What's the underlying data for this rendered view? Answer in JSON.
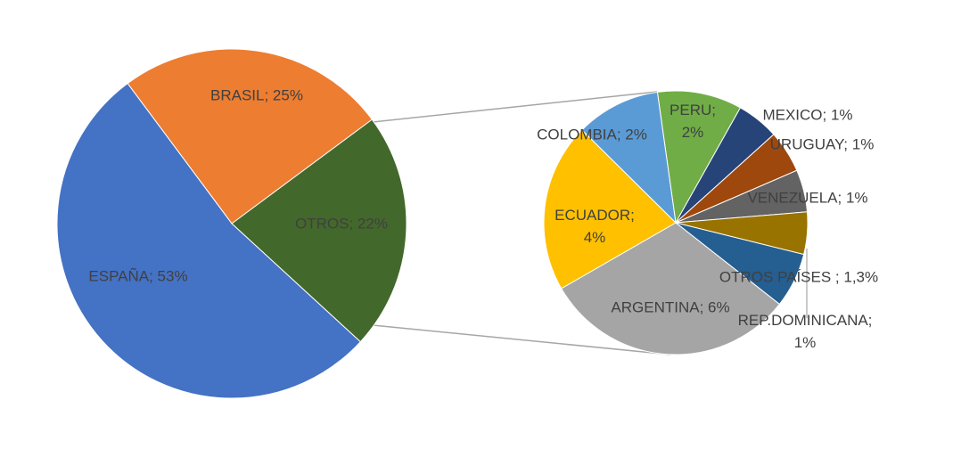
{
  "chart_data": [
    {
      "type": "pie",
      "labels": [
        [
          "ESPAÑA; 53%"
        ],
        [
          "BRASIL; 25%"
        ],
        [
          "OTROS; 22%"
        ]
      ],
      "values": [
        53,
        25,
        22
      ],
      "colors": [
        "#4472c4",
        "#ed7d31",
        "#43682b"
      ]
    },
    {
      "type": "pie",
      "labels": [
        [
          "PERU;",
          "2%"
        ],
        [
          "MEXICO; 1%"
        ],
        [
          "URUGUAY; 1%"
        ],
        [
          "VENEZUELA; 1%"
        ],
        [
          "REP.DOMINICANA;",
          "1%"
        ],
        [
          "OTROS PAÍSES ; 1,3%"
        ],
        [
          "ARGENTINA; 6%"
        ],
        [
          "ECUADOR;",
          "4%"
        ],
        [
          "COLOMBIA; 2%"
        ]
      ],
      "values": [
        2,
        1,
        1,
        1,
        1,
        1.3,
        6,
        4,
        2
      ],
      "colors": [
        "#70ad47",
        "#264478",
        "#9e480e",
        "#636363",
        "#997300",
        "#255e91",
        "#a5a5a5",
        "#ffc000",
        "#5b9bd5"
      ]
    }
  ]
}
